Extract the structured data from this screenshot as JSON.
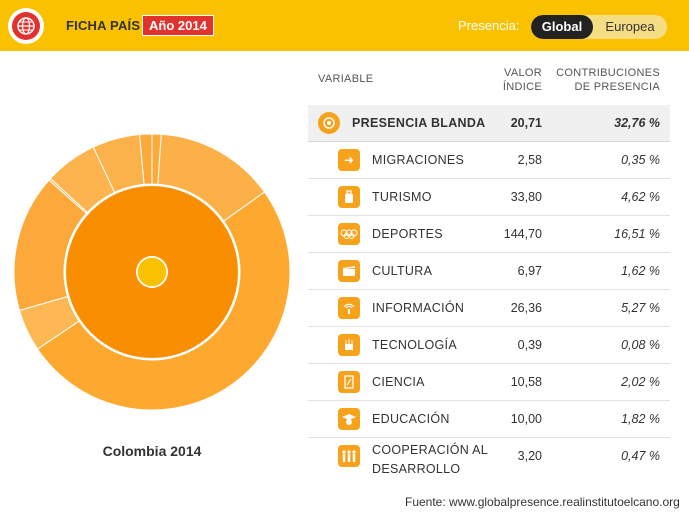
{
  "header": {
    "title": "FICHA PAÍS",
    "year_badge": "Año 2014",
    "presence_label": "Presencia:",
    "toggle": {
      "active": "Global",
      "inactive": "Europea"
    }
  },
  "colors": {
    "header_bg": "#f9c100",
    "badge_red": "#e1322d",
    "inner_ring": "#f98f00",
    "outer_ring": "#fcab3a",
    "center_dot": "#f9c100",
    "icon_bg": "#f7a21b"
  },
  "chart_caption": "Colombia 2014",
  "table": {
    "headers": {
      "variable": "VARIABLE",
      "value_line1": "VALOR",
      "value_line2": "ÍNDICE",
      "contrib_line1": "CONTRIBUCIONES",
      "contrib_line2": "DE PRESENCIA"
    },
    "main": {
      "icon": "soft-power-icon",
      "label": "PRESENCIA BLANDA",
      "value": "20,71",
      "contribution": "32,76 %"
    },
    "rows": [
      {
        "icon": "migration-icon",
        "label": "MIGRACIONES",
        "value": "2,58",
        "contribution": "0,35 %"
      },
      {
        "icon": "tourism-icon",
        "label": "TURISMO",
        "value": "33,80",
        "contribution": "4,62 %"
      },
      {
        "icon": "sports-rings-icon",
        "label": "DEPORTES",
        "value": "144,70",
        "contribution": "16,51 %"
      },
      {
        "icon": "culture-icon",
        "label": "CULTURA",
        "value": "6,97",
        "contribution": "1,62 %"
      },
      {
        "icon": "information-icon",
        "label": "INFORMACIÓN",
        "value": "26,36",
        "contribution": "5,27 %"
      },
      {
        "icon": "technology-icon",
        "label": "TECNOLOGÍA",
        "value": "0,39",
        "contribution": "0,08 %"
      },
      {
        "icon": "science-icon",
        "label": "CIENCIA",
        "value": "10,58",
        "contribution": "2,02 %"
      },
      {
        "icon": "education-icon",
        "label": "EDUCACIÓN",
        "value": "10,00",
        "contribution": "1,82 %"
      },
      {
        "icon": "cooperation-icon",
        "label_line1": "COOPERACIÓN AL",
        "label_line2": "DESARROLLO",
        "value": "3,20",
        "contribution": "0,47 %"
      }
    ]
  },
  "source": "Fuente: www.globalpresence.realinstitutoelcano.org",
  "chart_data": {
    "type": "pie",
    "inner": [
      {
        "name": "PRESENCIA BLANDA",
        "value": 32.76
      }
    ],
    "outer": [
      {
        "name": "MIGRACIONES",
        "value": 0.35
      },
      {
        "name": "TURISMO",
        "value": 4.62
      },
      {
        "name": "DEPORTES",
        "value": 16.51
      },
      {
        "name": "CULTURA",
        "value": 1.62
      },
      {
        "name": "INFORMACIÓN",
        "value": 5.27
      },
      {
        "name": "TECNOLOGÍA",
        "value": 0.08
      },
      {
        "name": "CIENCIA",
        "value": 2.02
      },
      {
        "name": "EDUCACIÓN",
        "value": 1.82
      },
      {
        "name": "COOPERACIÓN AL DESARROLLO",
        "value": 0.47
      }
    ]
  }
}
